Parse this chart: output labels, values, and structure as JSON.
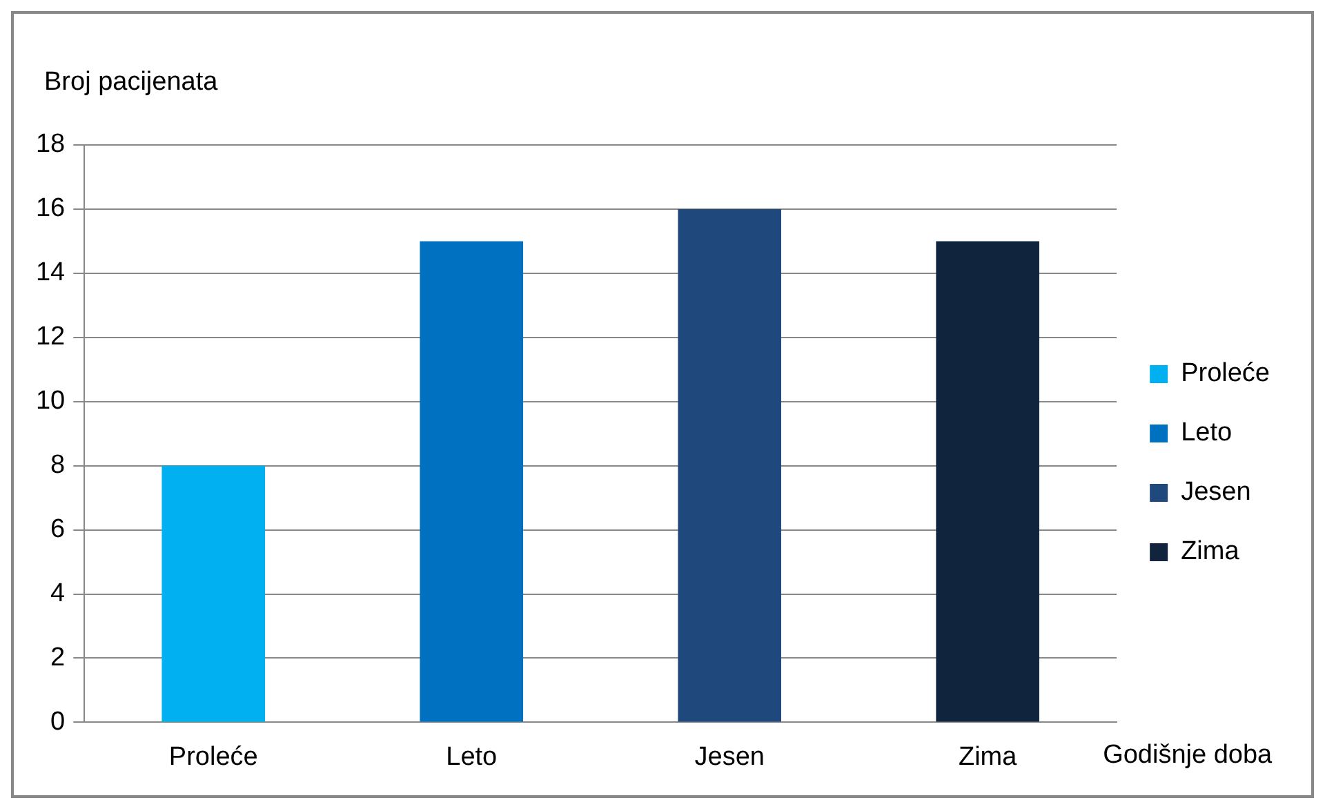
{
  "chart_data": {
    "type": "bar",
    "xlabel": "Godišnje doba",
    "ylabel": "Broj pacijenata",
    "categories": [
      "Proleće",
      "Leto",
      "Jesen",
      "Zima"
    ],
    "series": [
      {
        "name": "Proleće",
        "color": "#00b0f0",
        "values": [
          8,
          null,
          null,
          null
        ]
      },
      {
        "name": "Leto",
        "color": "#0070c0",
        "values": [
          null,
          15,
          null,
          null
        ]
      },
      {
        "name": "Jesen",
        "color": "#1f497d",
        "values": [
          null,
          null,
          16,
          null
        ]
      },
      {
        "name": "Zima",
        "color": "#10243e",
        "values": [
          null,
          null,
          null,
          15
        ]
      }
    ],
    "ylim": [
      0,
      18
    ],
    "yticks": [
      0,
      2,
      4,
      6,
      8,
      10,
      12,
      14,
      16,
      18
    ],
    "grid": "y",
    "legend": "right"
  }
}
